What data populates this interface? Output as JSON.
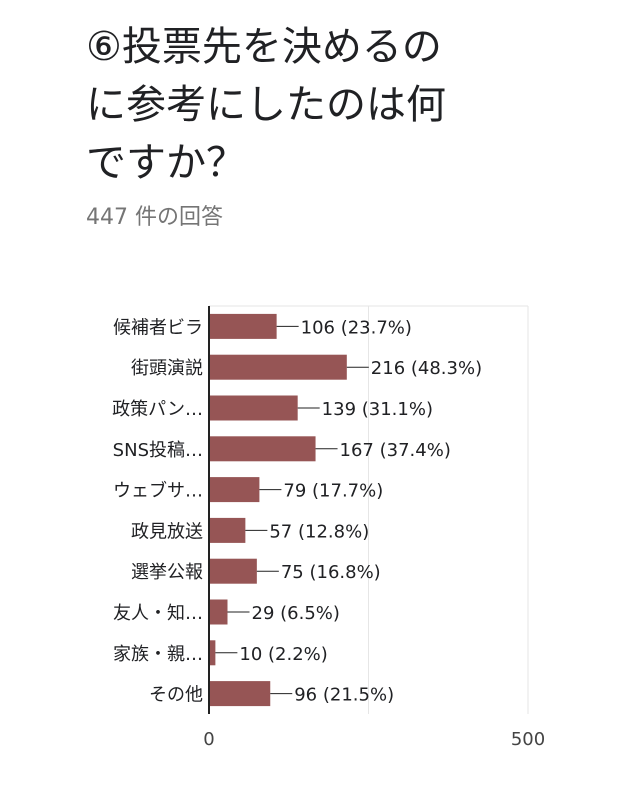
{
  "question": {
    "title": "⑥投票先を決めるの\nに参考にしたのは何\nですか？",
    "response_count": "447 件の回答"
  },
  "colors": {
    "bar": "#965555",
    "text": "#202124",
    "muted": "#757575",
    "grid": "#e6e6e6",
    "axis": "#222222"
  },
  "chart_data": {
    "type": "bar",
    "orientation": "horizontal",
    "categories": [
      "候補者ビラ",
      "街頭演説",
      "政策パン…",
      "SNS投稿…",
      "ウェブサ…",
      "政見放送",
      "選挙公報",
      "友人・知…",
      "家族・親…",
      "その他"
    ],
    "values": [
      106,
      216,
      139,
      167,
      79,
      57,
      75,
      29,
      10,
      96
    ],
    "data_labels": [
      "106 (23.7%)",
      "216 (48.3%)",
      "139 (31.1%)",
      "167 (37.4%)",
      "79 (17.7%)",
      "57 (12.8%)",
      "75 (16.8%)",
      "29 (6.5%)",
      "10 (2.2%)",
      "96 (21.5%)"
    ],
    "xlim": [
      0,
      500
    ],
    "x_ticks": [
      "0",
      "500"
    ],
    "grid": true,
    "legend": "none"
  }
}
